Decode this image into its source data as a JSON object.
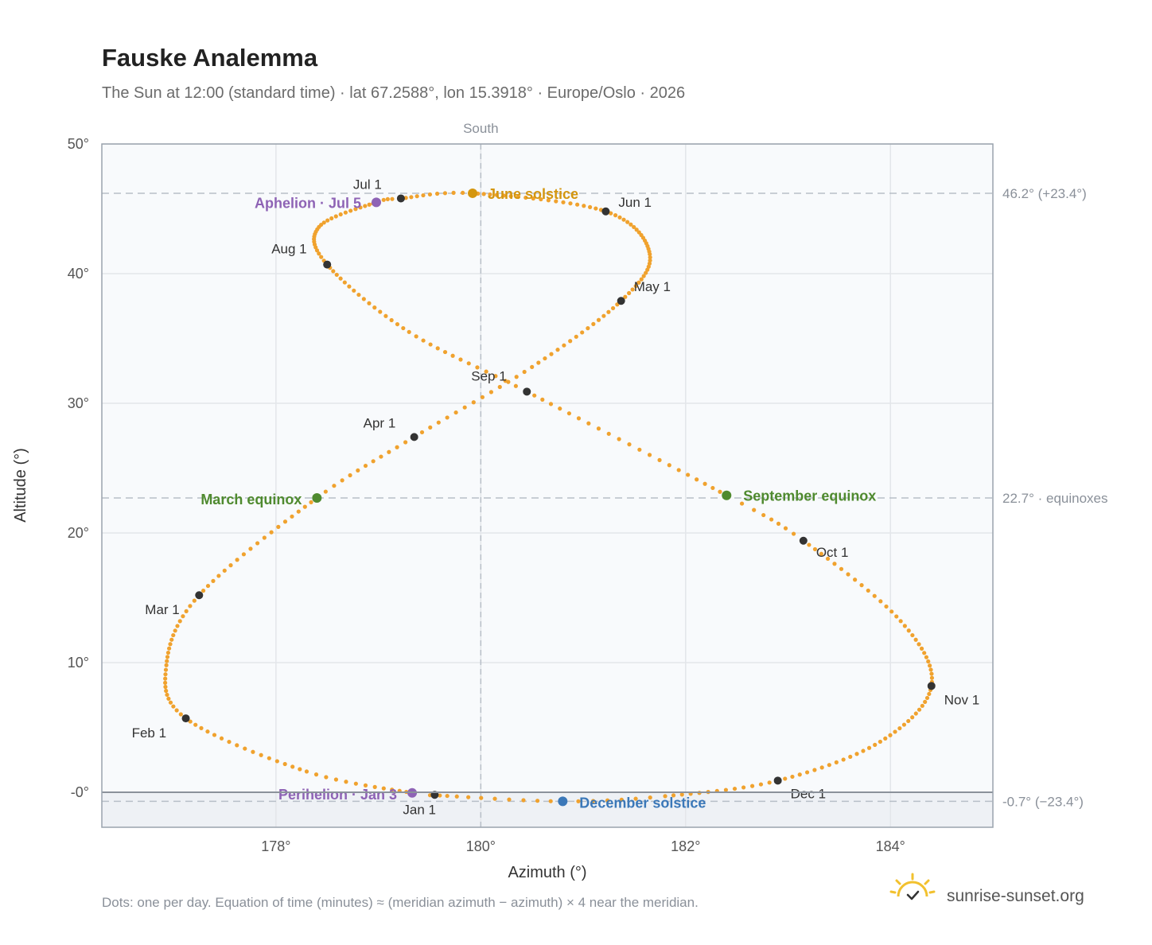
{
  "chart_data": {
    "type": "scatter",
    "title": "Fauske Analemma",
    "subtitle": "The Sun at 12:00 (standard time) · lat 67.2588°, lon 15.3918° · Europe/Oslo · 2026",
    "xlabel": "Azimuth (°)",
    "ylabel": "Altitude (°)",
    "xlim": [
      176.3,
      185.0
    ],
    "ylim": [
      -2.7,
      50
    ],
    "x_ticks": [
      178,
      180,
      182,
      184
    ],
    "x_tick_labels": [
      "178°",
      "180°",
      "182°",
      "184°"
    ],
    "y_ticks": [
      0,
      10,
      20,
      30,
      40,
      50
    ],
    "y_tick_labels": [
      "-0°",
      "10°",
      "20°",
      "30°",
      "40°",
      "50°"
    ],
    "grid": true,
    "meridian": {
      "x": 180,
      "label": "South"
    },
    "horizon": {
      "y": 0
    },
    "reference_lines": [
      {
        "y": 46.2,
        "label": "46.2° (+23.4°)"
      },
      {
        "y": 22.7,
        "label": "22.7° · equinoxes"
      },
      {
        "y": -0.7,
        "label": "-0.7° (−23.4°)"
      }
    ],
    "curve_keypoints": [
      {
        "day": 1,
        "az": 179.55,
        "alt": -0.2
      },
      {
        "day": 3,
        "az": 179.33,
        "alt": -0.05
      },
      {
        "day": 15,
        "az": 178.3,
        "alt": 1.6
      },
      {
        "day": 32,
        "az": 177.12,
        "alt": 5.7
      },
      {
        "day": 45,
        "az": 176.93,
        "alt": 9.8
      },
      {
        "day": 60,
        "az": 177.25,
        "alt": 15.2
      },
      {
        "day": 79,
        "az": 178.4,
        "alt": 22.7
      },
      {
        "day": 91,
        "az": 179.35,
        "alt": 27.4
      },
      {
        "day": 105,
        "az": 180.5,
        "alt": 32.8
      },
      {
        "day": 121,
        "az": 181.37,
        "alt": 37.9
      },
      {
        "day": 135,
        "az": 181.65,
        "alt": 41.5
      },
      {
        "day": 152,
        "az": 181.22,
        "alt": 44.8
      },
      {
        "day": 172,
        "az": 179.92,
        "alt": 46.2
      },
      {
        "day": 182,
        "az": 179.22,
        "alt": 45.8
      },
      {
        "day": 186,
        "az": 178.98,
        "alt": 45.5
      },
      {
        "day": 200,
        "az": 178.42,
        "alt": 43.6
      },
      {
        "day": 213,
        "az": 178.5,
        "alt": 40.7
      },
      {
        "day": 230,
        "az": 179.3,
        "alt": 35.5
      },
      {
        "day": 244,
        "az": 180.45,
        "alt": 30.9
      },
      {
        "day": 266,
        "az": 182.4,
        "alt": 22.9
      },
      {
        "day": 274,
        "az": 183.15,
        "alt": 19.4
      },
      {
        "day": 290,
        "az": 184.1,
        "alt": 13.2
      },
      {
        "day": 305,
        "az": 184.4,
        "alt": 8.2
      },
      {
        "day": 320,
        "az": 183.9,
        "alt": 3.9
      },
      {
        "day": 335,
        "az": 182.9,
        "alt": 0.9
      },
      {
        "day": 348,
        "az": 181.8,
        "alt": -0.3
      },
      {
        "day": 355,
        "az": 180.8,
        "alt": -0.7
      },
      {
        "day": 365,
        "az": 179.6,
        "alt": -0.25
      }
    ],
    "month_markers": [
      {
        "label": "Jan 1",
        "az": 179.55,
        "alt": -0.2
      },
      {
        "label": "Feb 1",
        "az": 177.12,
        "alt": 5.7
      },
      {
        "label": "Mar 1",
        "az": 177.25,
        "alt": 15.2
      },
      {
        "label": "Apr 1",
        "az": 179.35,
        "alt": 27.4
      },
      {
        "label": "May 1",
        "az": 181.37,
        "alt": 37.9
      },
      {
        "label": "Jun 1",
        "az": 181.22,
        "alt": 44.8
      },
      {
        "label": "Jul 1",
        "az": 179.22,
        "alt": 45.8
      },
      {
        "label": "Aug 1",
        "az": 178.5,
        "alt": 40.7
      },
      {
        "label": "Sep 1",
        "az": 180.45,
        "alt": 30.9
      },
      {
        "label": "Oct 1",
        "az": 183.15,
        "alt": 19.4
      },
      {
        "label": "Nov 1",
        "az": 184.4,
        "alt": 8.2
      },
      {
        "label": "Dec 1",
        "az": 182.9,
        "alt": 0.9
      }
    ],
    "events": [
      {
        "label": "June solstice",
        "az": 179.92,
        "alt": 46.2,
        "color": "#d4960f"
      },
      {
        "label": "Aphelion · Jul 5",
        "az": 178.98,
        "alt": 45.5,
        "color": "#8e63b5"
      },
      {
        "label": "March equinox",
        "az": 178.4,
        "alt": 22.7,
        "color": "#4f8a2f"
      },
      {
        "label": "September equinox",
        "az": 182.4,
        "alt": 22.9,
        "color": "#4f8a2f"
      },
      {
        "label": "Perihelion · Jan 3",
        "az": 179.33,
        "alt": -0.05,
        "color": "#8e63b5"
      },
      {
        "label": "December solstice",
        "az": 180.8,
        "alt": -0.7,
        "color": "#3b78b8"
      }
    ],
    "colors": {
      "curve": "#f0a22e",
      "month_marker": "#333333",
      "plot_background": "#f8fafc",
      "below_horizon": "#eef1f5",
      "grid": "#e3e6ea",
      "reference_line": "#b8bfc8",
      "frame": "#9aa3ad"
    }
  },
  "footnote": "Dots: one per day. Equation of time (minutes) ≈ (meridian azimuth − azimuth) × 4 near the meridian.",
  "brand": {
    "name": "sunrise-sunset.org",
    "icon": "sun-logo-icon"
  }
}
